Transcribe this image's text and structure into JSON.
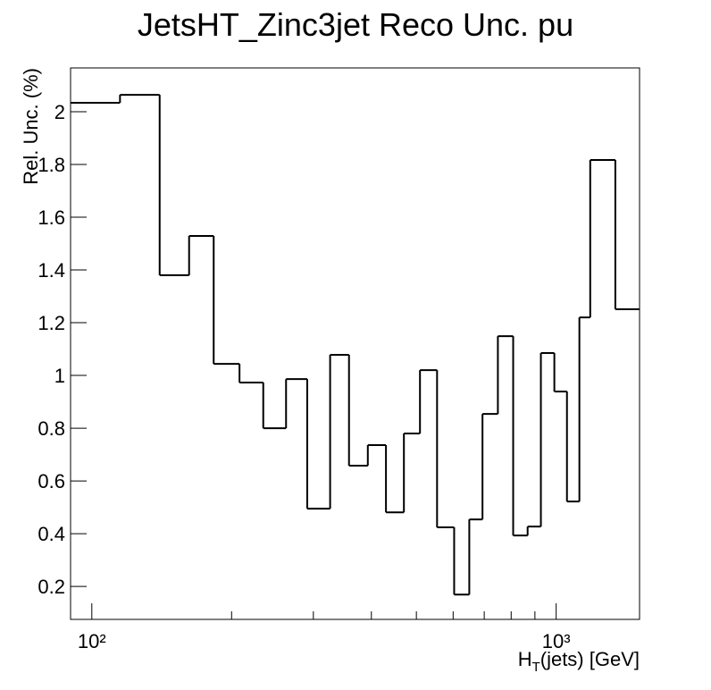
{
  "chart_data": {
    "type": "histogram",
    "title": "JetsHT_Zinc3jet Reco Unc. pu",
    "ylabel": "Rel. Unc. (%)",
    "xlabel": {
      "main": "H",
      "sub": "T",
      "rest": "(jets) [GeV]"
    },
    "bins": [
      90,
      115,
      140,
      162,
      183,
      208,
      234,
      262,
      291,
      326,
      358,
      393,
      430,
      470,
      509,
      554,
      603,
      650,
      694,
      749,
      808,
      868,
      927,
      991,
      1055,
      1122,
      1184,
      1341,
      1512
    ],
    "values": [
      2.034,
      2.064,
      1.38,
      1.529,
      1.044,
      0.973,
      0.8,
      0.986,
      0.495,
      1.078,
      0.658,
      0.736,
      0.481,
      0.78,
      1.02,
      0.424,
      0.169,
      0.454,
      0.854,
      1.149,
      0.393,
      0.427,
      1.085,
      0.939,
      0.522,
      1.22,
      1.817,
      1.251
    ],
    "color": "#000000",
    "xlog": true,
    "xlim": [
      90,
      1512
    ],
    "ylim": [
      0.075,
      2.166
    ],
    "xticks": [
      {
        "value": 100,
        "label": "10²"
      },
      {
        "value": 1000,
        "label": "10³"
      }
    ],
    "xminorticks": [
      200,
      300,
      400,
      500,
      600,
      700,
      800,
      900
    ],
    "yticks": [
      0.2,
      0.4,
      0.6,
      0.8,
      1,
      1.2,
      1.4,
      1.6,
      1.8,
      2
    ]
  }
}
